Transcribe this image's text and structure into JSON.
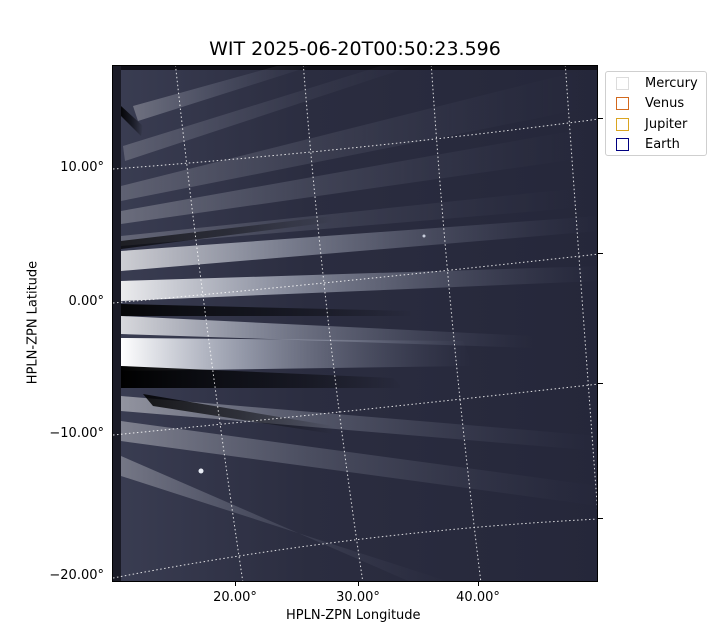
{
  "title": "WIT 2025-06-20T00:50:23.596",
  "xlabel": "HPLN-ZPN Longitude",
  "ylabel": "HPLN-ZPN Latitude",
  "x_ticks": [
    "20.00°",
    "30.00°",
    "40.00°"
  ],
  "y_ticks": [
    "10.00°",
    "0.00°",
    "−10.00°",
    "−20.00°"
  ],
  "legend": [
    {
      "name": "Mercury",
      "color": "#dcdcdc"
    },
    {
      "name": "Venus",
      "color": "#d2691e"
    },
    {
      "name": "Jupiter",
      "color": "#daa520"
    },
    {
      "name": "Earth",
      "color": "#000080"
    }
  ],
  "colors": {
    "background_dark": "#262838",
    "streamer_light": "#e8ecf4",
    "grid": "#ffffff"
  }
}
